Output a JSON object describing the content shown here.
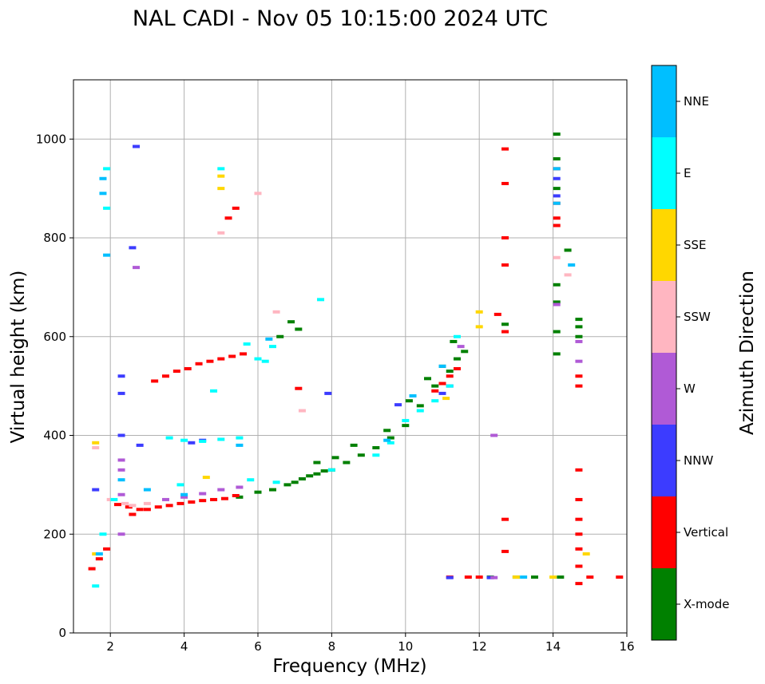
{
  "chart_data": {
    "type": "scatter",
    "title": "NAL CADI - Nov 05 10:15:00 2024 UTC",
    "xlabel": "Frequency (MHz)",
    "ylabel": "Virtual height (km)",
    "xlim": [
      1.0,
      16.0
    ],
    "ylim": [
      0,
      1120
    ],
    "xticks": [
      2,
      4,
      6,
      8,
      10,
      12,
      14,
      16
    ],
    "yticks": [
      0,
      200,
      400,
      600,
      800,
      1000
    ],
    "grid": true,
    "colorbar": {
      "label": "Azimuth Direction",
      "categories": [
        {
          "name": "X-mode",
          "color": "#008000"
        },
        {
          "name": "Vertical",
          "color": "#ff0000"
        },
        {
          "name": "NNW",
          "color": "#3c3cff"
        },
        {
          "name": "W",
          "color": "#b05ad6"
        },
        {
          "name": "SSW",
          "color": "#ffb6c1"
        },
        {
          "name": "SSE",
          "color": "#ffd700"
        },
        {
          "name": "E",
          "color": "#00ffff"
        },
        {
          "name": "NNE",
          "color": "#00bfff"
        }
      ]
    },
    "series": [
      {
        "name": "X-mode",
        "points": [
          [
            6.4,
            290
          ],
          [
            6.8,
            300
          ],
          [
            7.0,
            305
          ],
          [
            7.2,
            312
          ],
          [
            7.4,
            318
          ],
          [
            7.6,
            322
          ],
          [
            7.8,
            328
          ],
          [
            8.0,
            330
          ],
          [
            8.4,
            345
          ],
          [
            8.8,
            360
          ],
          [
            9.2,
            375
          ],
          [
            9.6,
            395
          ],
          [
            10.0,
            420
          ],
          [
            10.4,
            460
          ],
          [
            10.8,
            500
          ],
          [
            11.2,
            530
          ],
          [
            11.4,
            555
          ],
          [
            11.6,
            570
          ],
          [
            10.6,
            515
          ],
          [
            11.0,
            540
          ],
          [
            14.1,
            1010
          ],
          [
            14.1,
            960
          ],
          [
            14.1,
            900
          ],
          [
            14.1,
            610
          ],
          [
            14.1,
            670
          ],
          [
            14.1,
            705
          ],
          [
            14.1,
            565
          ],
          [
            14.7,
            620
          ],
          [
            14.7,
            635
          ],
          [
            14.7,
            600
          ],
          [
            6.9,
            630
          ],
          [
            7.1,
            615
          ],
          [
            6.6,
            600
          ],
          [
            14.4,
            775
          ],
          [
            12.7,
            625
          ],
          [
            12.3,
            113
          ],
          [
            13.0,
            113
          ],
          [
            13.5,
            113
          ],
          [
            14.2,
            113
          ],
          [
            5.5,
            275
          ],
          [
            6.0,
            285
          ],
          [
            7.6,
            345
          ],
          [
            8.1,
            355
          ],
          [
            8.6,
            380
          ],
          [
            9.5,
            410
          ],
          [
            10.1,
            470
          ],
          [
            11.3,
            590
          ]
        ]
      },
      {
        "name": "Vertical",
        "points": [
          [
            1.5,
            130
          ],
          [
            1.7,
            150
          ],
          [
            1.9,
            170
          ],
          [
            2.2,
            260
          ],
          [
            2.5,
            255
          ],
          [
            2.8,
            250
          ],
          [
            3.0,
            250
          ],
          [
            3.3,
            255
          ],
          [
            3.6,
            258
          ],
          [
            3.9,
            262
          ],
          [
            4.2,
            265
          ],
          [
            4.5,
            268
          ],
          [
            4.8,
            270
          ],
          [
            5.1,
            272
          ],
          [
            5.4,
            278
          ],
          [
            3.2,
            510
          ],
          [
            3.5,
            520
          ],
          [
            3.8,
            530
          ],
          [
            4.1,
            535
          ],
          [
            4.4,
            545
          ],
          [
            4.7,
            550
          ],
          [
            5.0,
            555
          ],
          [
            5.3,
            560
          ],
          [
            5.6,
            565
          ],
          [
            10.8,
            490
          ],
          [
            11.0,
            505
          ],
          [
            11.2,
            520
          ],
          [
            11.4,
            535
          ],
          [
            12.7,
            980
          ],
          [
            12.7,
            910
          ],
          [
            12.7,
            800
          ],
          [
            12.7,
            745
          ],
          [
            12.7,
            610
          ],
          [
            12.7,
            230
          ],
          [
            12.7,
            165
          ],
          [
            12.5,
            645
          ],
          [
            14.1,
            940
          ],
          [
            14.1,
            870
          ],
          [
            14.1,
            825
          ],
          [
            14.1,
            840
          ],
          [
            14.7,
            330
          ],
          [
            14.7,
            270
          ],
          [
            14.7,
            230
          ],
          [
            14.7,
            200
          ],
          [
            14.7,
            170
          ],
          [
            14.7,
            135
          ],
          [
            14.7,
            100
          ],
          [
            14.7,
            520
          ],
          [
            14.7,
            500
          ],
          [
            15.0,
            113
          ],
          [
            15.8,
            113
          ],
          [
            11.2,
            113
          ],
          [
            11.7,
            113
          ],
          [
            12.0,
            113
          ],
          [
            5.4,
            860
          ],
          [
            5.2,
            840
          ],
          [
            7.1,
            495
          ],
          [
            2.6,
            240
          ]
        ]
      },
      {
        "name": "NNW",
        "points": [
          [
            2.3,
            520
          ],
          [
            2.3,
            485
          ],
          [
            2.3,
            400
          ],
          [
            1.6,
            290
          ],
          [
            2.6,
            780
          ],
          [
            2.8,
            380
          ],
          [
            4.2,
            385
          ],
          [
            4.5,
            390
          ],
          [
            9.8,
            462
          ],
          [
            11.0,
            485
          ],
          [
            11.2,
            500
          ],
          [
            14.1,
            885
          ],
          [
            14.1,
            920
          ],
          [
            12.3,
            112
          ],
          [
            11.2,
            112
          ],
          [
            7.9,
            485
          ],
          [
            2.7,
            985
          ]
        ]
      },
      {
        "name": "W",
        "points": [
          [
            2.3,
            350
          ],
          [
            2.3,
            330
          ],
          [
            2.3,
            280
          ],
          [
            2.3,
            200
          ],
          [
            2.7,
            740
          ],
          [
            3.5,
            270
          ],
          [
            4.0,
            275
          ],
          [
            4.5,
            282
          ],
          [
            5.0,
            290
          ],
          [
            5.5,
            295
          ],
          [
            12.4,
            400
          ],
          [
            12.4,
            112
          ],
          [
            14.1,
            665
          ],
          [
            14.7,
            590
          ],
          [
            14.7,
            550
          ],
          [
            11.5,
            580
          ]
        ]
      },
      {
        "name": "SSW",
        "points": [
          [
            1.6,
            375
          ],
          [
            2.0,
            270
          ],
          [
            2.4,
            262
          ],
          [
            2.6,
            258
          ],
          [
            3.0,
            262
          ],
          [
            5.0,
            810
          ],
          [
            6.0,
            890
          ],
          [
            7.2,
            450
          ],
          [
            6.5,
            650
          ],
          [
            14.1,
            760
          ],
          [
            14.4,
            725
          ]
        ]
      },
      {
        "name": "SSE",
        "points": [
          [
            1.6,
            385
          ],
          [
            5.0,
            925
          ],
          [
            5.0,
            900
          ],
          [
            12.0,
            650
          ],
          [
            12.0,
            620
          ],
          [
            13.0,
            113
          ],
          [
            14.0,
            113
          ],
          [
            14.9,
            160
          ],
          [
            11.1,
            475
          ],
          [
            4.6,
            315
          ],
          [
            1.6,
            160
          ]
        ]
      },
      {
        "name": "E",
        "points": [
          [
            1.6,
            95
          ],
          [
            1.8,
            200
          ],
          [
            2.1,
            270
          ],
          [
            3.6,
            395
          ],
          [
            4.0,
            390
          ],
          [
            4.5,
            388
          ],
          [
            5.0,
            392
          ],
          [
            5.5,
            395
          ],
          [
            4.8,
            490
          ],
          [
            5.7,
            585
          ],
          [
            6.0,
            555
          ],
          [
            6.4,
            580
          ],
          [
            7.7,
            675
          ],
          [
            9.2,
            360
          ],
          [
            9.6,
            385
          ],
          [
            10.0,
            430
          ],
          [
            10.4,
            450
          ],
          [
            10.8,
            470
          ],
          [
            11.2,
            500
          ],
          [
            5.0,
            940
          ],
          [
            1.9,
            940
          ],
          [
            1.9,
            860
          ],
          [
            6.2,
            550
          ],
          [
            5.8,
            310
          ],
          [
            8.0,
            330
          ],
          [
            6.5,
            305
          ],
          [
            11.4,
            600
          ],
          [
            3.9,
            300
          ]
        ]
      },
      {
        "name": "NNE",
        "points": [
          [
            1.8,
            920
          ],
          [
            1.8,
            890
          ],
          [
            1.9,
            765
          ],
          [
            1.7,
            160
          ],
          [
            2.3,
            310
          ],
          [
            3.0,
            290
          ],
          [
            4.0,
            280
          ],
          [
            5.5,
            380
          ],
          [
            6.3,
            595
          ],
          [
            9.5,
            390
          ],
          [
            10.2,
            480
          ],
          [
            11.0,
            540
          ],
          [
            13.2,
            113
          ],
          [
            14.5,
            745
          ],
          [
            14.1,
            870
          ],
          [
            14.1,
            940
          ]
        ]
      }
    ]
  }
}
